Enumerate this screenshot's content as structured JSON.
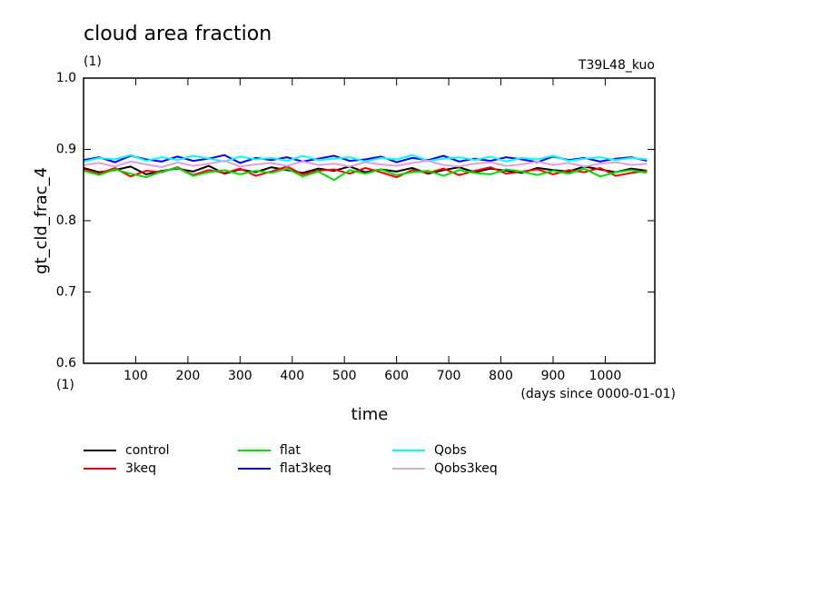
{
  "chart_data": {
    "type": "line",
    "title": "cloud area fraction",
    "subtitle": "(1)",
    "annotation": "T39L48_kuo",
    "y_label": "gt_cld_frac_4",
    "y_unit": "(1)",
    "x_label": "time",
    "x_unit": "(days since 0000-01-01)",
    "xlim": [
      0,
      1095
    ],
    "xticks": [
      100,
      200,
      300,
      400,
      500,
      600,
      700,
      800,
      900,
      1000
    ],
    "ylim": [
      0.6,
      1
    ],
    "yticks": [
      0.6,
      0.7,
      0.8,
      0.9,
      {
        "value": 1,
        "label": "1.0"
      }
    ],
    "x": [
      0,
      30,
      60,
      90,
      120,
      150,
      180,
      210,
      240,
      270,
      300,
      330,
      360,
      390,
      420,
      450,
      480,
      510,
      540,
      570,
      600,
      630,
      660,
      690,
      720,
      750,
      780,
      810,
      840,
      870,
      900,
      930,
      960,
      990,
      1020,
      1050,
      1080
    ],
    "series": [
      {
        "name": "control",
        "color": "#000000",
        "values": [
          0.874,
          0.868,
          0.871,
          0.876,
          0.865,
          0.87,
          0.873,
          0.869,
          0.877,
          0.866,
          0.872,
          0.868,
          0.875,
          0.871,
          0.867,
          0.873,
          0.87,
          0.876,
          0.868,
          0.872,
          0.869,
          0.874,
          0.866,
          0.871,
          0.875,
          0.868,
          0.873,
          0.87,
          0.867,
          0.874,
          0.871,
          0.869,
          0.876,
          0.872,
          0.868,
          0.873,
          0.87
        ]
      },
      {
        "name": "3keq",
        "color": "#ff0000",
        "values": [
          0.872,
          0.866,
          0.874,
          0.862,
          0.87,
          0.868,
          0.875,
          0.864,
          0.871,
          0.867,
          0.873,
          0.863,
          0.869,
          0.876,
          0.865,
          0.87,
          0.872,
          0.866,
          0.874,
          0.868,
          0.861,
          0.871,
          0.867,
          0.873,
          0.864,
          0.87,
          0.875,
          0.866,
          0.869,
          0.872,
          0.865,
          0.871,
          0.868,
          0.874,
          0.863,
          0.867,
          0.87
        ]
      },
      {
        "name": "flat",
        "color": "#00e000",
        "values": [
          0.87,
          0.864,
          0.872,
          0.866,
          0.861,
          0.869,
          0.874,
          0.863,
          0.868,
          0.871,
          0.865,
          0.87,
          0.867,
          0.873,
          0.862,
          0.869,
          0.857,
          0.871,
          0.866,
          0.872,
          0.864,
          0.868,
          0.87,
          0.863,
          0.871,
          0.867,
          0.865,
          0.872,
          0.869,
          0.864,
          0.87,
          0.866,
          0.873,
          0.862,
          0.868,
          0.871,
          0.867
        ]
      },
      {
        "name": "flat3keq",
        "color": "#0000ff",
        "values": [
          0.885,
          0.889,
          0.882,
          0.891,
          0.886,
          0.883,
          0.89,
          0.884,
          0.887,
          0.892,
          0.881,
          0.888,
          0.885,
          0.889,
          0.883,
          0.887,
          0.891,
          0.884,
          0.886,
          0.89,
          0.882,
          0.888,
          0.885,
          0.891,
          0.883,
          0.887,
          0.884,
          0.889,
          0.886,
          0.882,
          0.89,
          0.885,
          0.888,
          0.883,
          0.887,
          0.889,
          0.884
        ]
      },
      {
        "name": "Qobs",
        "color": "#00ffff",
        "values": [
          0.883,
          0.888,
          0.886,
          0.892,
          0.884,
          0.889,
          0.885,
          0.891,
          0.887,
          0.883,
          0.89,
          0.886,
          0.888,
          0.884,
          0.891,
          0.885,
          0.887,
          0.889,
          0.883,
          0.888,
          0.886,
          0.892,
          0.884,
          0.887,
          0.889,
          0.885,
          0.89,
          0.883,
          0.888,
          0.886,
          0.891,
          0.884,
          0.887,
          0.889,
          0.885,
          0.888,
          0.886
        ]
      },
      {
        "name": "Qobs3keq",
        "color": "#e0a0e0",
        "values": [
          0.878,
          0.881,
          0.876,
          0.883,
          0.879,
          0.875,
          0.882,
          0.877,
          0.88,
          0.884,
          0.876,
          0.879,
          0.881,
          0.877,
          0.883,
          0.878,
          0.88,
          0.876,
          0.882,
          0.879,
          0.877,
          0.881,
          0.884,
          0.878,
          0.876,
          0.88,
          0.882,
          0.877,
          0.879,
          0.883,
          0.878,
          0.881,
          0.876,
          0.88,
          0.882,
          0.878,
          0.88
        ]
      }
    ]
  }
}
